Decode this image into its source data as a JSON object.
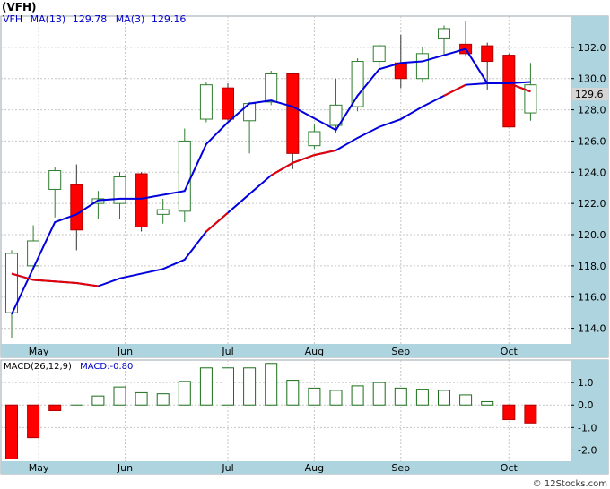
{
  "header": {
    "symbol": "(VFH)"
  },
  "colors": {
    "background": "#ffffff",
    "frame": "#9ba6ad",
    "axis_band": "#aed5df",
    "grid": "#c6c6c6",
    "up_candle": "#2e7d2e",
    "down_candle": "#ff0000",
    "ma13": "#0000dd",
    "ma3": "#e60000",
    "macd_bar": "#1a6f1a",
    "macd_neg": "#ff0000",
    "label_blue": "#0000cc",
    "price_tag_bg": "#d5d5d5"
  },
  "price_panel": {
    "legend": {
      "ticker": "VFH",
      "ma13_label": "MA(13)",
      "ma13_value": "129.78",
      "ma3_label": "MA(3)",
      "ma3_value": "129.16"
    },
    "last_price_tag": "129.6"
  },
  "macd_panel": {
    "legend": {
      "params": "MACD(26,12,9)",
      "value_label": "MACD:-0.80"
    }
  },
  "watermark": "© 12Stocks.com",
  "chart_data": [
    {
      "type": "candlestick",
      "title": "(VFH)",
      "ylim": [
        113.0,
        134.0
      ],
      "y_ticks": [
        114.0,
        116.0,
        118.0,
        120.0,
        122.0,
        124.0,
        126.0,
        128.0,
        130.0,
        132.0
      ],
      "x_tick_labels": [
        "May",
        "Jun",
        "Jul",
        "Aug",
        "Sep",
        "Oct"
      ],
      "x_tick_positions": [
        1.25,
        5.25,
        10,
        14,
        18,
        23
      ],
      "candles": [
        {
          "o": 115.0,
          "h": 119.0,
          "l": 113.4,
          "c": 118.8
        },
        {
          "o": 118.0,
          "h": 120.6,
          "l": 117.8,
          "c": 119.6
        },
        {
          "o": 122.9,
          "h": 124.3,
          "l": 121.1,
          "c": 124.1
        },
        {
          "o": 123.2,
          "h": 124.5,
          "l": 119.0,
          "c": 120.3
        },
        {
          "o": 122.0,
          "h": 122.8,
          "l": 121.0,
          "c": 122.3
        },
        {
          "o": 122.0,
          "h": 124.0,
          "l": 121.0,
          "c": 123.7
        },
        {
          "o": 123.9,
          "h": 124.0,
          "l": 120.2,
          "c": 120.5
        },
        {
          "o": 121.3,
          "h": 122.3,
          "l": 120.7,
          "c": 121.6
        },
        {
          "o": 121.5,
          "h": 126.8,
          "l": 120.8,
          "c": 126.0
        },
        {
          "o": 127.4,
          "h": 129.8,
          "l": 127.2,
          "c": 129.6
        },
        {
          "o": 129.4,
          "h": 129.7,
          "l": 127.3,
          "c": 127.4
        },
        {
          "o": 127.3,
          "h": 128.5,
          "l": 125.2,
          "c": 128.4
        },
        {
          "o": 128.5,
          "h": 130.5,
          "l": 128.3,
          "c": 130.3
        },
        {
          "o": 130.3,
          "h": 130.3,
          "l": 124.2,
          "c": 125.2
        },
        {
          "o": 125.7,
          "h": 127.1,
          "l": 125.5,
          "c": 126.6
        },
        {
          "o": 127.0,
          "h": 130.0,
          "l": 126.5,
          "c": 128.3
        },
        {
          "o": 128.2,
          "h": 131.3,
          "l": 127.9,
          "c": 131.1
        },
        {
          "o": 131.1,
          "h": 132.2,
          "l": 130.6,
          "c": 132.1
        },
        {
          "o": 131.0,
          "h": 132.8,
          "l": 129.4,
          "c": 130.0
        },
        {
          "o": 130.0,
          "h": 132.0,
          "l": 129.8,
          "c": 131.6
        },
        {
          "o": 132.6,
          "h": 133.4,
          "l": 131.5,
          "c": 133.2
        },
        {
          "o": 132.2,
          "h": 133.7,
          "l": 131.4,
          "c": 131.6
        },
        {
          "o": 132.1,
          "h": 132.3,
          "l": 129.3,
          "c": 131.1
        },
        {
          "o": 131.5,
          "h": 131.6,
          "l": 126.9,
          "c": 126.9
        },
        {
          "o": 127.8,
          "h": 131.0,
          "l": 127.3,
          "c": 129.6
        }
      ],
      "series": [
        {
          "name": "MA(13)",
          "points": [
            [
              0,
              114.9
            ],
            [
              2,
              120.8
            ],
            [
              3,
              121.3
            ],
            [
              4,
              122.2
            ],
            [
              5,
              122.3
            ],
            [
              6,
              122.3
            ],
            [
              8,
              122.8
            ],
            [
              9,
              125.8
            ],
            [
              10,
              127.2
            ],
            [
              11,
              128.4
            ],
            [
              12,
              128.6
            ],
            [
              13,
              128.2
            ],
            [
              15,
              126.7
            ],
            [
              16,
              128.9
            ],
            [
              17,
              130.6
            ],
            [
              18,
              131.0
            ],
            [
              19,
              131.1
            ],
            [
              20,
              131.5
            ],
            [
              21,
              131.9
            ],
            [
              22,
              129.7
            ],
            [
              23,
              129.7
            ],
            [
              24,
              129.78
            ]
          ]
        },
        {
          "name": "MA(3)",
          "points": [
            [
              0,
              117.5
            ],
            [
              1,
              117.1
            ],
            [
              2,
              117.0
            ],
            [
              3,
              116.9
            ],
            [
              4,
              116.7
            ],
            [
              5,
              117.2
            ],
            [
              6,
              117.5
            ],
            [
              7,
              117.8
            ],
            [
              8,
              118.4
            ],
            [
              9,
              120.2
            ],
            [
              10,
              121.4
            ],
            [
              11,
              122.6
            ],
            [
              12,
              123.8
            ],
            [
              13,
              124.6
            ],
            [
              14,
              125.1
            ],
            [
              15,
              125.4
            ],
            [
              16,
              126.2
            ],
            [
              17,
              126.9
            ],
            [
              18,
              127.4
            ],
            [
              19,
              128.2
            ],
            [
              20,
              128.9
            ],
            [
              21,
              129.6
            ],
            [
              22,
              129.7
            ],
            [
              23,
              129.7
            ],
            [
              24,
              129.16
            ]
          ]
        }
      ],
      "ma3_red_segments": [
        [
          9,
          10
        ],
        [
          12,
          15
        ],
        [
          20,
          21
        ],
        [
          23,
          24
        ]
      ]
    },
    {
      "type": "bar",
      "title": "MACD(26,12,9)",
      "ylim": [
        -2.5,
        2.0
      ],
      "y_ticks": [
        1.0,
        0.0,
        -1.0,
        -2.0
      ],
      "y_tick_labels": [
        "1.0",
        "0.0",
        "-1.0",
        "-2.0"
      ],
      "x_tick_labels": [
        "May",
        "Jun",
        "Jul",
        "Aug",
        "Sep",
        "Oct"
      ],
      "values": [
        -2.4,
        -1.45,
        -0.25,
        0.0,
        0.4,
        0.8,
        0.55,
        0.5,
        1.05,
        1.65,
        1.65,
        1.65,
        1.85,
        1.1,
        0.75,
        0.65,
        0.85,
        1.0,
        0.75,
        0.7,
        0.65,
        0.45,
        0.15,
        -0.65,
        -0.8
      ]
    }
  ]
}
